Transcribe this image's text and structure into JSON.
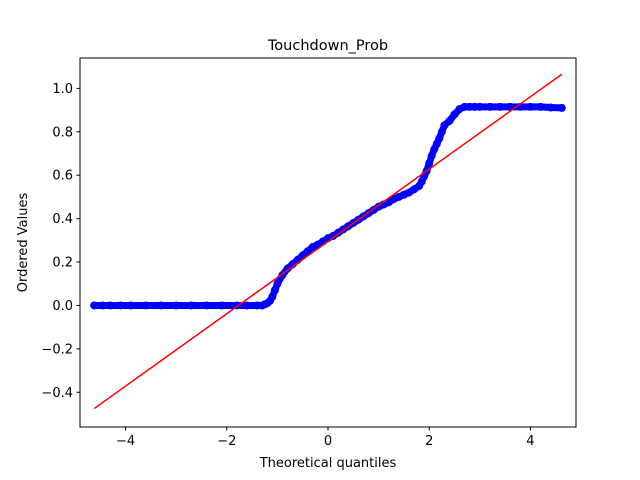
{
  "chart_data": {
    "type": "scatter",
    "title": "Touchdown_Prob",
    "xlabel": "Theoretical quantiles",
    "ylabel": "Ordered Values",
    "xlim": [
      -4.9,
      4.9
    ],
    "ylim": [
      -0.56,
      1.14
    ],
    "x_ticks": [
      {
        "value": -4,
        "label": "−4"
      },
      {
        "value": -2,
        "label": "−2"
      },
      {
        "value": 0,
        "label": "0"
      },
      {
        "value": 2,
        "label": "2"
      },
      {
        "value": 4,
        "label": "4"
      }
    ],
    "y_ticks": [
      {
        "value": -0.4,
        "label": "−0.4"
      },
      {
        "value": -0.2,
        "label": "−0.2"
      },
      {
        "value": 0.0,
        "label": "0.0"
      },
      {
        "value": 0.2,
        "label": "0.2"
      },
      {
        "value": 0.4,
        "label": "0.4"
      },
      {
        "value": 0.6,
        "label": "0.6"
      },
      {
        "value": 0.8,
        "label": "0.8"
      },
      {
        "value": 1.0,
        "label": "1.0"
      }
    ],
    "grid": false,
    "series": [
      {
        "kind": "points",
        "color": "#0000ff",
        "x": [
          -4.62,
          -4.45,
          -4.3,
          -4.1,
          -3.9,
          -3.6,
          -3.3,
          -3.0,
          -2.7,
          -2.4,
          -2.1,
          -1.8,
          -1.6,
          -1.4,
          -1.3,
          -1.25,
          -1.2,
          -1.15,
          -1.1,
          -1.05,
          -1.0,
          -0.9,
          -0.8,
          -0.7,
          -0.6,
          -0.5,
          -0.4,
          -0.3,
          -0.2,
          -0.1,
          0.0,
          0.1,
          0.2,
          0.3,
          0.4,
          0.5,
          0.6,
          0.7,
          0.8,
          0.9,
          1.0,
          1.1,
          1.2,
          1.3,
          1.4,
          1.5,
          1.6,
          1.7,
          1.8,
          1.85,
          1.9,
          1.95,
          2.0,
          2.05,
          2.1,
          2.15,
          2.2,
          2.25,
          2.3,
          2.4,
          2.5,
          2.6,
          2.7,
          2.8,
          2.9,
          3.0,
          3.2,
          3.4,
          3.6,
          3.8,
          4.0,
          4.2,
          4.4,
          4.62
        ],
        "y": [
          0.0,
          0.0,
          0.0,
          0.0,
          0.0,
          0.0,
          0.0,
          0.0,
          0.0,
          0.0,
          0.0,
          0.0,
          0.0,
          0.0,
          0.0,
          0.005,
          0.01,
          0.02,
          0.04,
          0.07,
          0.1,
          0.14,
          0.17,
          0.19,
          0.21,
          0.23,
          0.25,
          0.27,
          0.28,
          0.295,
          0.31,
          0.32,
          0.335,
          0.35,
          0.365,
          0.38,
          0.395,
          0.41,
          0.425,
          0.44,
          0.455,
          0.465,
          0.475,
          0.49,
          0.5,
          0.51,
          0.52,
          0.535,
          0.55,
          0.57,
          0.595,
          0.62,
          0.655,
          0.69,
          0.72,
          0.745,
          0.77,
          0.8,
          0.83,
          0.85,
          0.88,
          0.905,
          0.915,
          0.915,
          0.915,
          0.915,
          0.915,
          0.915,
          0.915,
          0.915,
          0.915,
          0.915,
          0.912,
          0.91
        ]
      },
      {
        "kind": "line",
        "color": "#ff0000",
        "x": [
          -4.62,
          4.62
        ],
        "y": [
          -0.475,
          1.065
        ]
      }
    ]
  }
}
